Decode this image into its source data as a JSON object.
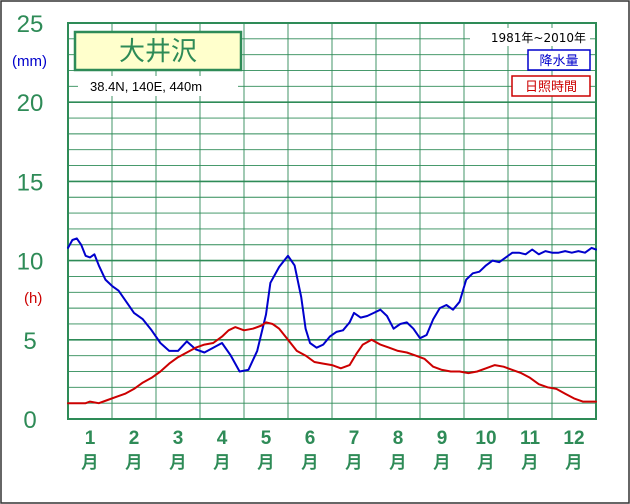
{
  "chart_data": {
    "type": "line",
    "station": "大井沢",
    "coords_label": "38.4N,  140E,  440m",
    "period_label": "1981年~2010年",
    "y_unit_primary": "(mm)",
    "y_unit_secondary": "(h)",
    "ylim": [
      0,
      25
    ],
    "y_ticks": [
      "0",
      "5",
      "10",
      "15",
      "20",
      "25"
    ],
    "grid": true,
    "months": [
      "1",
      "2",
      "3",
      "4",
      "5",
      "6",
      "7",
      "8",
      "9",
      "10",
      "11",
      "12"
    ],
    "month_suffix": "月",
    "x_domain": [
      0.5,
      12.5
    ],
    "series": [
      {
        "name": "降水量",
        "color": "#0000cc",
        "x": [
          0.5,
          0.6,
          0.7,
          0.8,
          0.9,
          1.0,
          1.1,
          1.2,
          1.35,
          1.5,
          1.65,
          1.8,
          2.0,
          2.2,
          2.4,
          2.6,
          2.8,
          3.0,
          3.2,
          3.4,
          3.6,
          3.8,
          4.0,
          4.2,
          4.4,
          4.6,
          4.8,
          5.0,
          5.1,
          5.3,
          5.5,
          5.65,
          5.8,
          5.9,
          6.0,
          6.15,
          6.3,
          6.45,
          6.6,
          6.75,
          6.9,
          7.0,
          7.15,
          7.3,
          7.45,
          7.6,
          7.75,
          7.9,
          8.05,
          8.2,
          8.35,
          8.5,
          8.65,
          8.8,
          8.95,
          9.1,
          9.25,
          9.4,
          9.55,
          9.7,
          9.85,
          10.0,
          10.15,
          10.3,
          10.45,
          10.6,
          10.75,
          10.9,
          11.05,
          11.2,
          11.35,
          11.5,
          11.65,
          11.8,
          11.95,
          12.1,
          12.25,
          12.4,
          12.5
        ],
        "values": [
          10.8,
          11.3,
          11.4,
          11.0,
          10.3,
          10.2,
          10.4,
          9.7,
          8.8,
          8.4,
          8.1,
          7.5,
          6.7,
          6.3,
          5.6,
          4.8,
          4.3,
          4.3,
          4.9,
          4.4,
          4.2,
          4.5,
          4.8,
          4.0,
          3.0,
          3.1,
          4.3,
          6.6,
          8.6,
          9.6,
          10.3,
          9.7,
          7.7,
          5.7,
          4.8,
          4.5,
          4.7,
          5.2,
          5.5,
          5.6,
          6.1,
          6.7,
          6.4,
          6.5,
          6.7,
          6.9,
          6.5,
          5.7,
          6.0,
          6.1,
          5.7,
          5.1,
          5.3,
          6.3,
          7.0,
          7.2,
          6.9,
          7.4,
          8.8,
          9.2,
          9.3,
          9.7,
          10.0,
          9.9,
          10.2,
          10.5,
          10.5,
          10.4,
          10.7,
          10.4,
          10.6,
          10.5,
          10.5,
          10.6,
          10.5,
          10.6,
          10.5,
          10.8,
          10.7
        ]
      },
      {
        "name": "日照時間",
        "color": "#cc0000",
        "x": [
          0.5,
          0.7,
          0.9,
          1.0,
          1.2,
          1.4,
          1.6,
          1.8,
          2.0,
          2.2,
          2.4,
          2.6,
          2.8,
          3.0,
          3.2,
          3.4,
          3.6,
          3.8,
          4.0,
          4.15,
          4.3,
          4.5,
          4.7,
          4.9,
          5.0,
          5.15,
          5.3,
          5.5,
          5.7,
          5.9,
          6.1,
          6.3,
          6.5,
          6.7,
          6.9,
          7.05,
          7.2,
          7.4,
          7.6,
          7.8,
          8.0,
          8.2,
          8.4,
          8.6,
          8.8,
          9.0,
          9.2,
          9.4,
          9.6,
          9.8,
          10.0,
          10.2,
          10.4,
          10.6,
          10.8,
          11.0,
          11.2,
          11.4,
          11.6,
          11.8,
          12.0,
          12.2,
          12.4,
          12.5
        ],
        "values": [
          1.0,
          1.0,
          1.0,
          1.1,
          1.0,
          1.2,
          1.4,
          1.6,
          1.9,
          2.3,
          2.6,
          3.0,
          3.5,
          3.9,
          4.2,
          4.5,
          4.7,
          4.8,
          5.2,
          5.6,
          5.8,
          5.6,
          5.7,
          5.9,
          6.1,
          6.0,
          5.7,
          5.0,
          4.3,
          4.0,
          3.6,
          3.5,
          3.4,
          3.2,
          3.4,
          4.1,
          4.7,
          5.0,
          4.7,
          4.5,
          4.3,
          4.2,
          4.0,
          3.8,
          3.3,
          3.1,
          3.0,
          3.0,
          2.9,
          3.0,
          3.2,
          3.4,
          3.3,
          3.1,
          2.9,
          2.6,
          2.2,
          2.0,
          1.9,
          1.6,
          1.3,
          1.1,
          1.1,
          1.1
        ]
      }
    ]
  }
}
